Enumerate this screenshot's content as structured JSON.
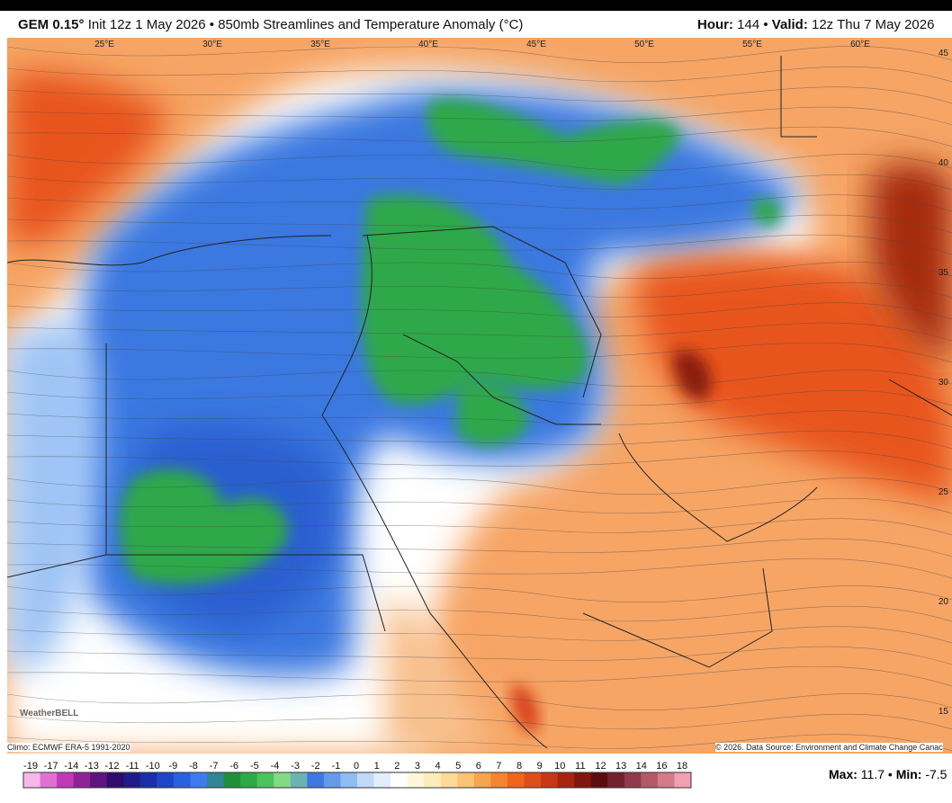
{
  "header": {
    "model": "GEM 0.15°",
    "title": "Init 12z 1 May 2026 • 850mb Streamlines and Temperature Anomaly (°C)",
    "hour_label": "Hour:",
    "hour": "144 •",
    "valid_label": "Valid:",
    "valid": "12z Thu 7 May 2026"
  },
  "map": {
    "longitudes": [
      "25°E",
      "30°E",
      "35°E",
      "40°E",
      "45°E",
      "50°E",
      "55°E",
      "60°E"
    ],
    "latitudes": [
      "45",
      "40",
      "35",
      "30",
      "25",
      "20",
      "15"
    ],
    "logo": "WeatherBELL",
    "climo": "Climo: ECMWF ERA-5 1991-2020",
    "credit": "© 2026. Data Source: Environment and Climate Change Canac"
  },
  "colorbar": {
    "labels": [
      "-19",
      "-17",
      "-14",
      "-13",
      "-12",
      "-11",
      "-10",
      "-9",
      "-8",
      "-7",
      "-6",
      "-5",
      "-4",
      "-3",
      "-2",
      "-1",
      "0",
      "1",
      "2",
      "3",
      "4",
      "5",
      "6",
      "7",
      "8",
      "9",
      "10",
      "11",
      "12",
      "13",
      "14",
      "16",
      "18"
    ]
  },
  "stats": {
    "max_label": "Max:",
    "max": "11.7 •",
    "min_label": "Min:",
    "min": "-7.5"
  }
}
